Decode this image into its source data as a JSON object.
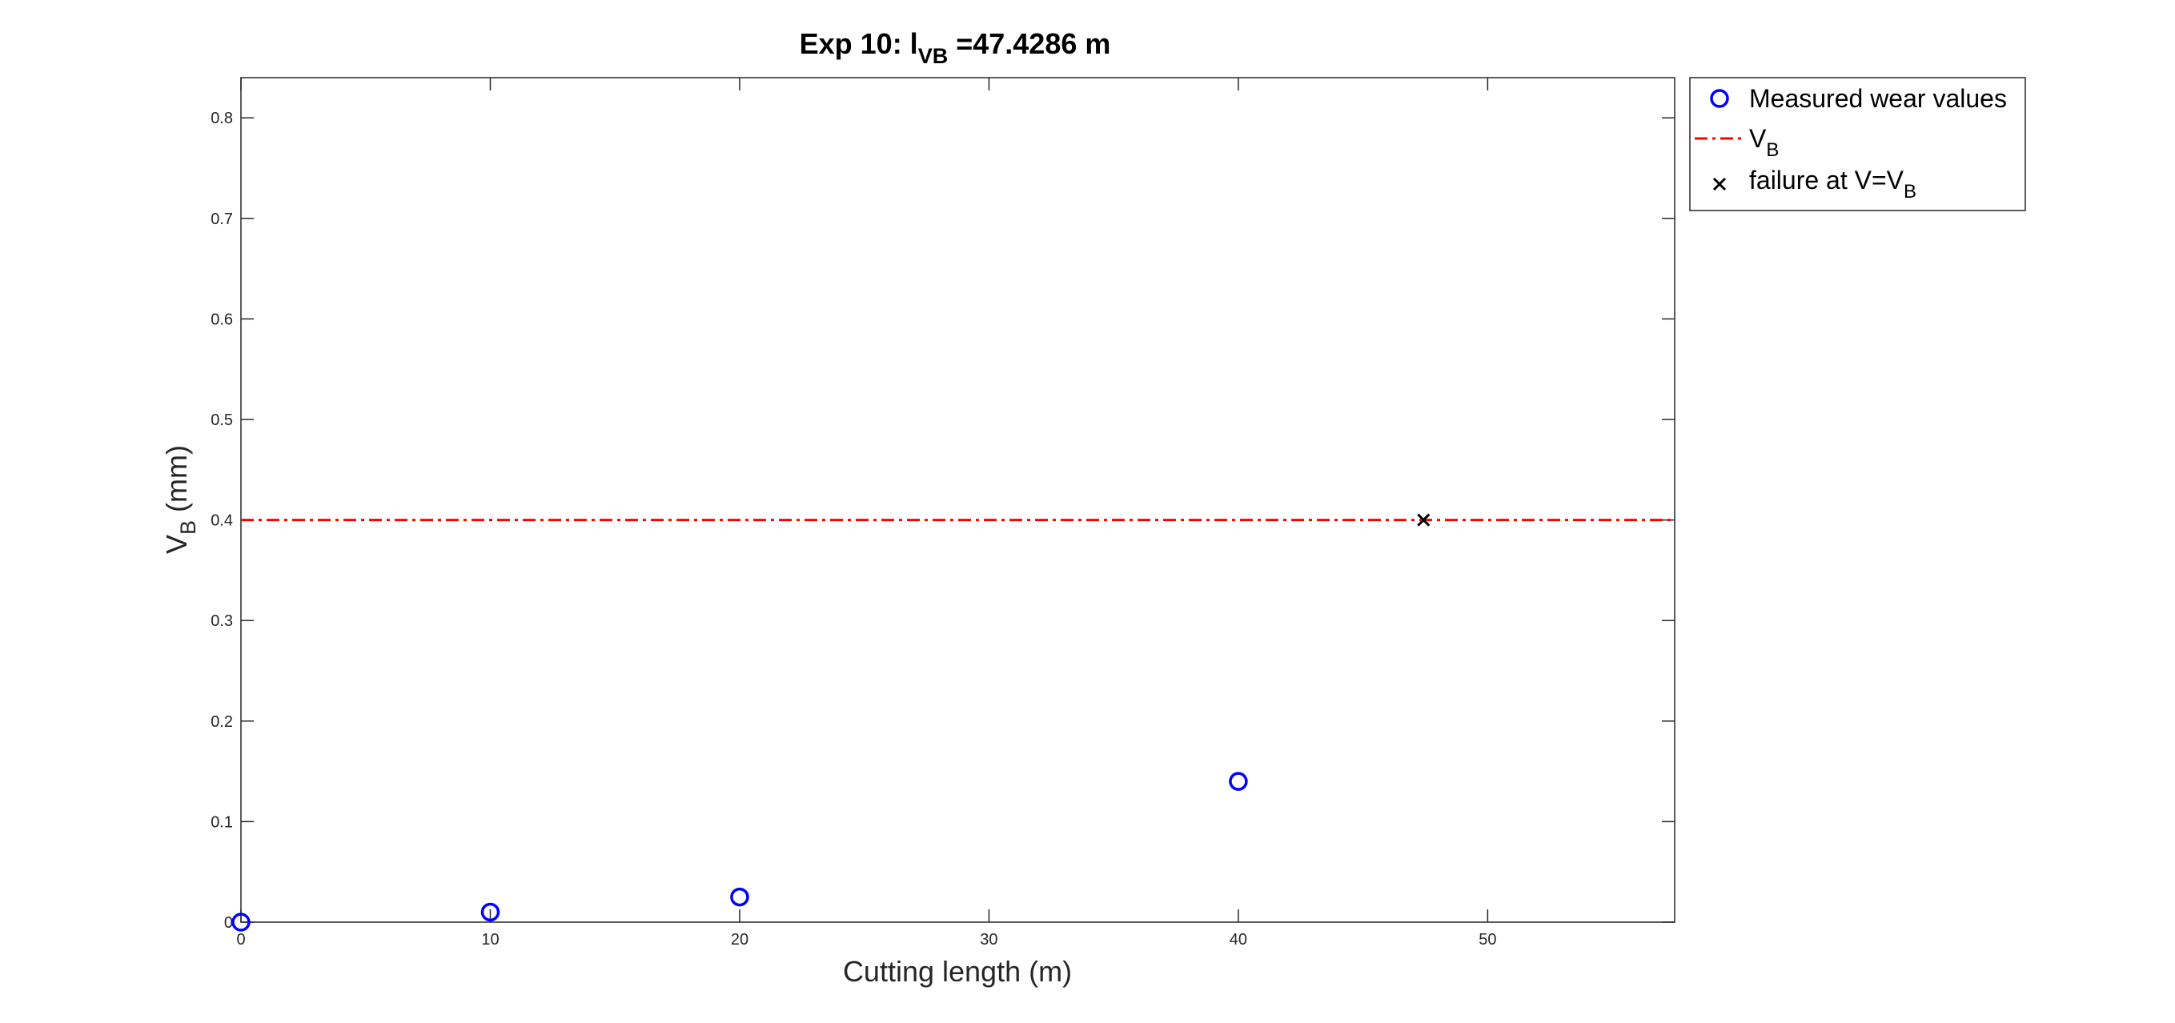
{
  "chart_data": {
    "type": "scatter",
    "title": {
      "prefix": "Exp 10: l",
      "subscript": "VB",
      "suffix": " =47.4286 m"
    },
    "xlabel": "Cutting length (m)",
    "ylabel": {
      "main": "V",
      "subscript": "B",
      "suffix": " (mm)"
    },
    "xlim": [
      0,
      57.5
    ],
    "ylim": [
      0,
      0.84
    ],
    "x_ticks": [
      0,
      10,
      20,
      30,
      40,
      50
    ],
    "y_ticks": [
      0,
      0.1,
      0.2,
      0.3,
      0.4,
      0.5,
      0.6,
      0.7,
      0.8
    ],
    "x_tick_labels": [
      "0",
      "10",
      "20",
      "30",
      "40",
      "50"
    ],
    "y_tick_labels": [
      "0",
      "0.1",
      "0.2",
      "0.3",
      "0.4",
      "0.5",
      "0.6",
      "0.7",
      "0.8"
    ],
    "grid": false,
    "legend_position": "outside-top-right",
    "series": [
      {
        "name": "Measured wear values",
        "kind": "scatter",
        "marker": "circle",
        "color": "#0000ff",
        "x": [
          0,
          10,
          20,
          40
        ],
        "y": [
          0,
          0.01,
          0.025,
          0.14
        ]
      },
      {
        "name": {
          "main": "V",
          "subscript": "B"
        },
        "kind": "hline",
        "style": "dash-dot",
        "color": "#ff0000",
        "y": 0.4
      },
      {
        "name": {
          "main": "failure at V=V",
          "subscript": "B"
        },
        "kind": "scatter",
        "marker": "x",
        "color": "#000000",
        "x": [
          47.4286
        ],
        "y": [
          0.4
        ]
      }
    ]
  }
}
